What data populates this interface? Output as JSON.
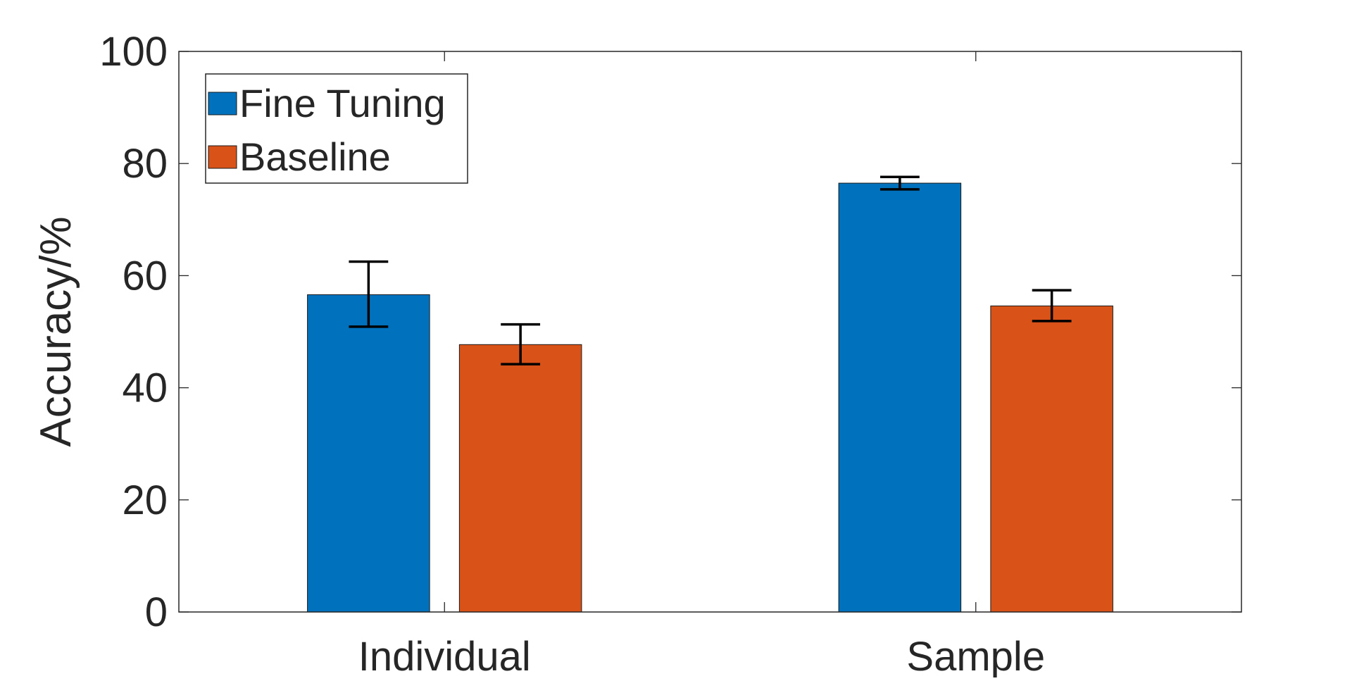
{
  "chart_data": {
    "type": "bar",
    "categories": [
      "Individual",
      "Sample"
    ],
    "series": [
      {
        "name": "Fine Tuning",
        "color": "#0072BD",
        "values": [
          56.6,
          76.5
        ],
        "error_low": [
          50.9,
          75.4
        ],
        "error_high": [
          62.5,
          77.6
        ]
      },
      {
        "name": "Baseline",
        "color": "#D95319",
        "values": [
          47.7,
          54.6
        ],
        "error_low": [
          44.2,
          51.9
        ],
        "error_high": [
          51.3,
          57.4
        ]
      }
    ],
    "title": "",
    "xlabel": "",
    "ylabel": "Accuracy/%",
    "ylim": [
      0,
      100
    ],
    "yticks": [
      0,
      20,
      40,
      60,
      80,
      100
    ],
    "grid": false,
    "legend_position": "top-left"
  }
}
